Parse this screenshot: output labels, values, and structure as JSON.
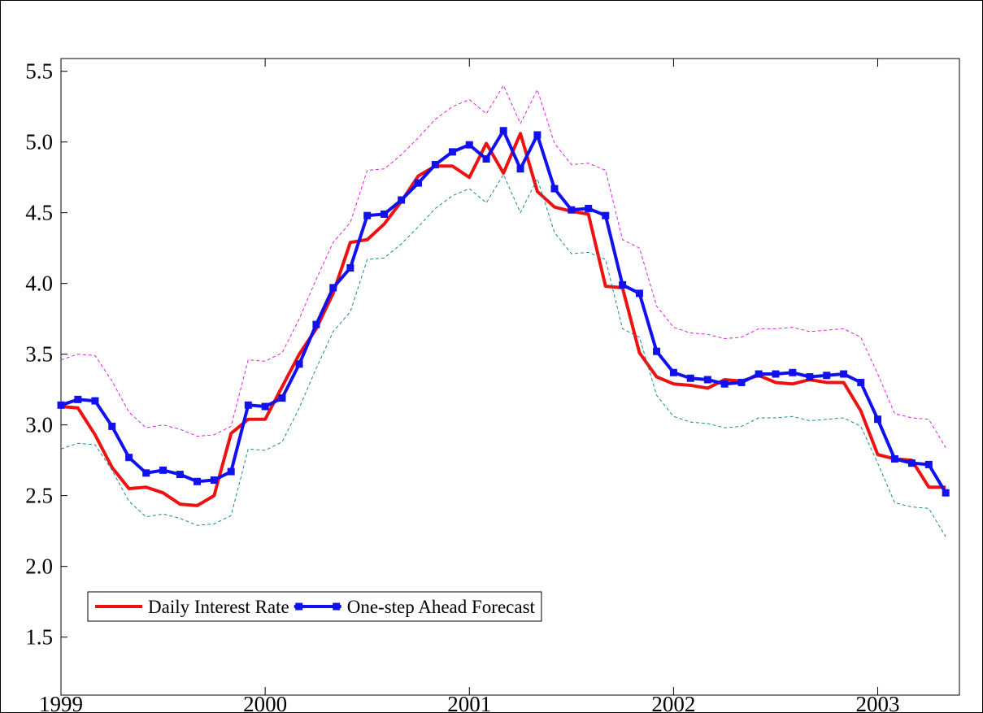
{
  "chart_data": {
    "type": "line",
    "x": [
      1999,
      1999.083,
      1999.167,
      1999.25,
      1999.333,
      1999.417,
      1999.5,
      1999.583,
      1999.667,
      1999.75,
      1999.833,
      1999.917,
      2000,
      2000.083,
      2000.167,
      2000.25,
      2000.333,
      2000.417,
      2000.5,
      2000.583,
      2000.667,
      2000.75,
      2000.833,
      2000.917,
      2001,
      2001.083,
      2001.167,
      2001.25,
      2001.333,
      2001.417,
      2001.5,
      2001.583,
      2001.667,
      2001.75,
      2001.833,
      2001.917,
      2002,
      2002.083,
      2002.167,
      2002.25,
      2002.333,
      2002.417,
      2002.5,
      2002.583,
      2002.667,
      2002.75,
      2002.833,
      2002.917,
      2003,
      2003.083,
      2003.167,
      2003.25,
      2003.333
    ],
    "series": [
      {
        "name": "Daily Interest Rate",
        "color": "#ee1111",
        "style": "solid",
        "markers": false,
        "values": [
          3.13,
          3.12,
          2.93,
          2.7,
          2.55,
          2.56,
          2.52,
          2.44,
          2.43,
          2.5,
          2.94,
          3.04,
          3.04,
          3.27,
          3.5,
          3.68,
          3.93,
          4.29,
          4.31,
          4.42,
          4.58,
          4.76,
          4.83,
          4.83,
          4.75,
          4.99,
          4.78,
          5.06,
          4.65,
          4.54,
          4.51,
          4.49,
          3.98,
          3.97,
          3.51,
          3.34,
          3.29,
          3.28,
          3.26,
          3.32,
          3.31,
          3.35,
          3.3,
          3.29,
          3.32,
          3.3,
          3.3,
          3.1,
          2.79,
          2.76,
          2.75,
          2.56,
          2.56
        ]
      },
      {
        "name": "One-step Ahead Forecast",
        "color": "#1111ee",
        "style": "solid",
        "markers": true,
        "values": [
          3.14,
          3.18,
          3.17,
          2.99,
          2.77,
          2.66,
          2.68,
          2.65,
          2.6,
          2.61,
          2.67,
          3.14,
          3.13,
          3.19,
          3.43,
          3.71,
          3.97,
          4.11,
          4.48,
          4.49,
          4.59,
          4.71,
          4.84,
          4.93,
          4.98,
          4.88,
          5.08,
          4.81,
          5.05,
          4.67,
          4.52,
          4.53,
          4.48,
          3.99,
          3.93,
          3.52,
          3.37,
          3.33,
          3.32,
          3.29,
          3.3,
          3.36,
          3.36,
          3.37,
          3.34,
          3.35,
          3.36,
          3.3,
          3.04,
          2.76,
          2.73,
          2.72,
          2.52
        ]
      },
      {
        "color": "#e020e0",
        "style": "dashed",
        "markers": false,
        "values": [
          3.46,
          3.5,
          3.49,
          3.31,
          3.09,
          2.98,
          3.0,
          2.97,
          2.92,
          2.93,
          2.99,
          3.46,
          3.45,
          3.51,
          3.75,
          4.03,
          4.29,
          4.43,
          4.8,
          4.81,
          4.91,
          5.03,
          5.16,
          5.25,
          5.3,
          5.2,
          5.4,
          5.13,
          5.37,
          4.99,
          4.84,
          4.85,
          4.8,
          4.31,
          4.25,
          3.84,
          3.69,
          3.65,
          3.64,
          3.61,
          3.62,
          3.68,
          3.68,
          3.69,
          3.66,
          3.67,
          3.68,
          3.62,
          3.36,
          3.08,
          3.05,
          3.04,
          2.84
        ]
      },
      {
        "color": "#208888",
        "style": "dashed",
        "markers": false,
        "values": [
          2.83,
          2.87,
          2.86,
          2.68,
          2.46,
          2.35,
          2.37,
          2.34,
          2.29,
          2.3,
          2.36,
          2.83,
          2.82,
          2.88,
          3.12,
          3.4,
          3.66,
          3.8,
          4.17,
          4.18,
          4.28,
          4.4,
          4.53,
          4.62,
          4.67,
          4.57,
          4.77,
          4.5,
          4.74,
          4.36,
          4.21,
          4.22,
          4.17,
          3.68,
          3.62,
          3.21,
          3.06,
          3.02,
          3.01,
          2.98,
          2.99,
          3.05,
          3.05,
          3.06,
          3.03,
          3.04,
          3.05,
          2.99,
          2.73,
          2.45,
          2.42,
          2.41,
          2.21
        ]
      }
    ],
    "xlim": [
      1999,
      2003.4
    ],
    "xticks": [
      1999,
      2000,
      2001,
      2002,
      2003
    ],
    "ylim": [
      1.09,
      5.59
    ],
    "yticks": [
      1.5,
      {
        "value": 2,
        "label": "2.0"
      },
      2.5,
      {
        "value": 3,
        "label": "3.0"
      },
      3.5,
      {
        "value": 4,
        "label": "4.0"
      },
      4.5,
      {
        "value": 5,
        "label": "5.0"
      },
      5.5
    ],
    "grid": false,
    "legend": "lower left"
  }
}
